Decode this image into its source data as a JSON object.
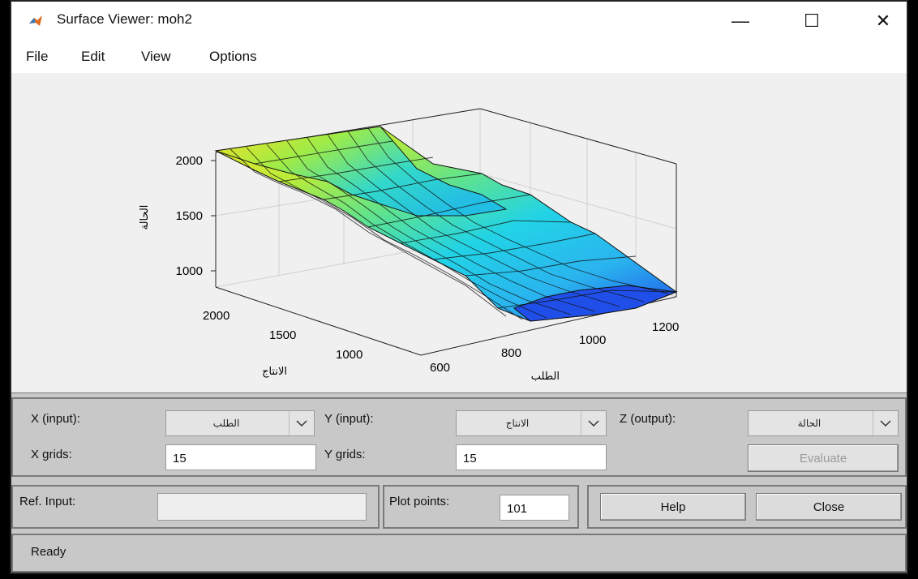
{
  "window": {
    "title": "Surface Viewer: moh2",
    "controls": [
      "—",
      "☐",
      "✕"
    ]
  },
  "menu": [
    "File",
    "Edit",
    "View",
    "Options"
  ],
  "plot": {
    "z_label": "الحالة",
    "x_label": "الطلب",
    "y_label": "الانتاج",
    "z_ticks": [
      "2000",
      "1500",
      "1000"
    ],
    "y_ticks": [
      "2000",
      "1500",
      "1000"
    ],
    "x_ticks": [
      "600",
      "800",
      "1000",
      "1200"
    ],
    "colors": {
      "high": "#f7e826",
      "mid": "#22d3e6",
      "low": "#1f4fe8"
    }
  },
  "controls": {
    "x_input_label": "X (input):",
    "x_input_value": "الطلب",
    "y_input_label": "Y (input):",
    "y_input_value": "الانتاج",
    "z_output_label": "Z (output):",
    "z_output_value": "الحالة",
    "x_grids_label": "X grids:",
    "x_grids_value": "15",
    "y_grids_label": "Y grids:",
    "y_grids_value": "15",
    "evaluate_label": "Evaluate",
    "ref_input_label": "Ref. Input:",
    "plot_points_label": "Plot points:",
    "plot_points_value": "101",
    "help_label": "Help",
    "close_label": "Close",
    "status": "Ready"
  }
}
